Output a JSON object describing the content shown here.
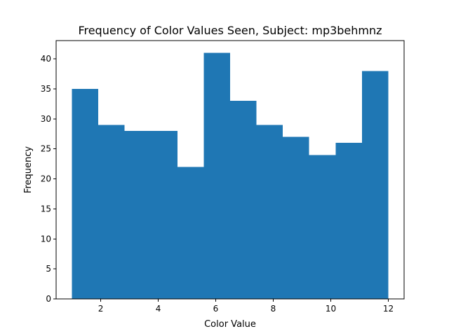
{
  "chart_data": {
    "type": "bar",
    "title": "Frequency of Color Values Seen, Subject: mp3behmnz",
    "xlabel": "Color Value",
    "ylabel": "Frequency",
    "bin_edges": [
      1.0,
      1.9167,
      2.8333,
      3.75,
      4.6667,
      5.5833,
      6.5,
      7.4167,
      8.3333,
      9.25,
      10.1667,
      11.0833,
      12.0
    ],
    "values": [
      35,
      29,
      28,
      28,
      22,
      41,
      33,
      29,
      27,
      24,
      26,
      38
    ],
    "xlim": [
      0.45,
      12.55
    ],
    "ylim": [
      0,
      43.05
    ],
    "xticks": [
      2,
      4,
      6,
      8,
      10,
      12
    ],
    "yticks": [
      0,
      5,
      10,
      15,
      20,
      25,
      30,
      35,
      40
    ],
    "bar_color": "#1f77b4",
    "grid": false,
    "legend": false
  }
}
